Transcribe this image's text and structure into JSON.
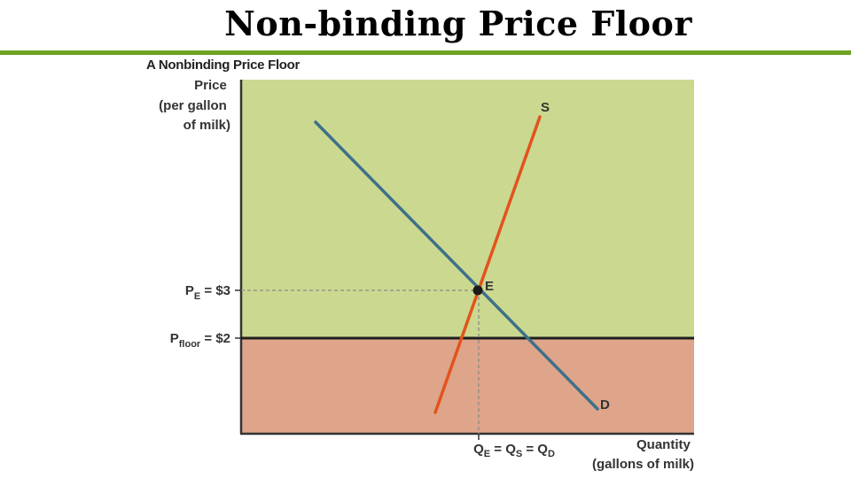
{
  "slide": {
    "title": "Non-binding Price Floor"
  },
  "figure": {
    "title": "A Nonbinding Price Floor",
    "y_axis_label": [
      "Price",
      "(per gallon",
      "of milk)"
    ],
    "x_axis_label": [
      "Quantity",
      "(gallons of milk)"
    ],
    "curves": {
      "supply_label": "S",
      "demand_label": "D"
    },
    "equilibrium": {
      "point_label": "E",
      "price_label": {
        "prefix": "P",
        "sub": "E",
        "suffix": " = $3"
      },
      "quantity_label": {
        "parts": [
          {
            "base": "Q",
            "sub": "E"
          },
          {
            "base": " = Q",
            "sub": "S"
          },
          {
            "base": " = Q",
            "sub": "D"
          }
        ]
      }
    },
    "price_floor": {
      "label": {
        "prefix": "P",
        "sub": "floor",
        "suffix": " = $2"
      }
    },
    "colors": {
      "surplus_region": "#cbd88f",
      "below_floor_region": "#dea58b",
      "supply_curve": "#e2531c",
      "demand_curve": "#3e7089",
      "floor_line": "#1e1e1e",
      "axes": "#333333",
      "guide_lines": "#8a8a8a",
      "title_rule": "#6ea322"
    }
  }
}
